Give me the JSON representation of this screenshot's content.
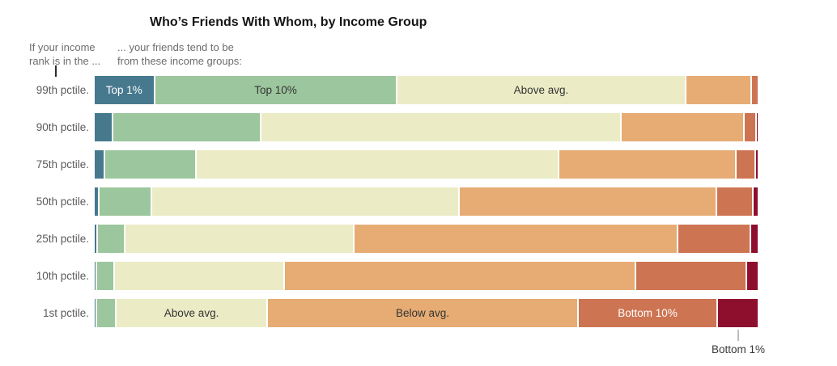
{
  "title": "Who’s Friends With Whom, by Income Group",
  "header": {
    "left_line1": "If your income",
    "left_line2": "rank is in the ...",
    "right_line1": "... your friends tend to be",
    "right_line2": "from these income groups:"
  },
  "callout": {
    "label": "Bottom 1%"
  },
  "colors": {
    "segment_palette": [
      "#46798e",
      "#9cc69d",
      "#ebecc5",
      "#e6ac74",
      "#cd7452",
      "#8e0e2e"
    ],
    "segment_label_colors": [
      "#ffffff",
      "#333333",
      "#333333",
      "#333333",
      "#ffffff",
      "#ffffff"
    ],
    "title_text": "#151515",
    "header_text": "#6d6d6d",
    "row_label_text": "#5b5b5b",
    "callout_text": "#3a3a3a"
  },
  "chart_data": {
    "type": "bar",
    "stacked": true,
    "orientation": "horizontal",
    "title": "Who’s Friends With Whom, by Income Group",
    "segments": [
      "Top 1%",
      "Top 10%",
      "Above avg.",
      "Below avg.",
      "Bottom 10%",
      "Bottom 1%"
    ],
    "categories": [
      "99th pctile.",
      "90th pctile.",
      "75th pctile.",
      "50th pctile.",
      "25th pctile.",
      "10th pctile.",
      "1st pctile."
    ],
    "x_range_percent": [
      0,
      100
    ],
    "rows": [
      {
        "label": "99th pctile.",
        "values": [
          8.9,
          36.5,
          43.4,
          9.8,
          0.8,
          0
        ],
        "labels": [
          "Top 1%",
          "Top 10%",
          "Above avg.",
          null,
          null,
          null
        ]
      },
      {
        "label": "90th pctile.",
        "values": [
          2.6,
          22.2,
          54.5,
          18.4,
          1.6,
          0.15
        ],
        "labels": [
          null,
          null,
          null,
          null,
          null,
          null
        ]
      },
      {
        "label": "75th pctile.",
        "values": [
          1.3,
          13.7,
          54.6,
          26.5,
          2.7,
          0.3
        ],
        "labels": [
          null,
          null,
          null,
          null,
          null,
          null
        ]
      },
      {
        "label": "50th pctile.",
        "values": [
          0.5,
          7.7,
          46.3,
          38.7,
          5.3,
          0.6
        ],
        "labels": [
          null,
          null,
          null,
          null,
          null,
          null
        ]
      },
      {
        "label": "25th pctile.",
        "values": [
          0.2,
          4.0,
          34.3,
          48.8,
          10.7,
          1.0
        ],
        "labels": [
          null,
          null,
          null,
          null,
          null,
          null
        ]
      },
      {
        "label": "10th pctile.",
        "values": [
          0.15,
          2.4,
          25.5,
          52.9,
          16.5,
          1.6
        ],
        "labels": [
          null,
          null,
          null,
          null,
          null,
          null
        ]
      },
      {
        "label": "1st pctile.",
        "values": [
          0.15,
          2.7,
          22.6,
          46.8,
          20.8,
          6.0
        ],
        "labels": [
          null,
          null,
          "Above avg.",
          "Below avg.",
          "Bottom 10%",
          null
        ]
      }
    ]
  }
}
